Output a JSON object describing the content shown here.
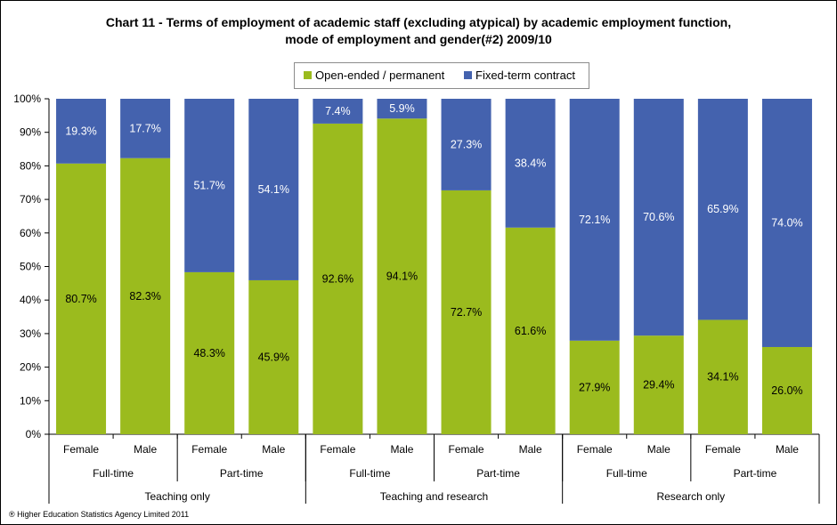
{
  "colors": {
    "open_ended": "#9bbb1e",
    "fixed_term": "#4462ae"
  },
  "chart_data": {
    "type": "bar",
    "stacked": true,
    "percent": true,
    "title": "Chart 11 - Terms of employment of academic staff (excluding atypical) by academic employment function,",
    "subtitle": "mode of employment and gender(#2) 2009/10",
    "ylim": [
      0,
      100
    ],
    "yticks": [
      "0%",
      "10%",
      "20%",
      "30%",
      "40%",
      "50%",
      "60%",
      "70%",
      "80%",
      "90%",
      "100%"
    ],
    "legend_position": "top",
    "grid": false,
    "categories": [
      "Female",
      "Male",
      "Female",
      "Male",
      "Female",
      "Male",
      "Female",
      "Male",
      "Female",
      "Male",
      "Female",
      "Male"
    ],
    "groups_level2": [
      "Full-time",
      "Part-time",
      "Full-time",
      "Part-time",
      "Full-time",
      "Part-time"
    ],
    "groups_level1": [
      "Teaching only",
      "Teaching and research",
      "Research only"
    ],
    "series": [
      {
        "name": "Open-ended / permanent",
        "values": [
          80.7,
          82.3,
          48.3,
          45.9,
          92.6,
          94.1,
          72.7,
          61.6,
          27.9,
          29.4,
          34.1,
          26.0
        ],
        "labels": [
          "80.7%",
          "82.3%",
          "48.3%",
          "45.9%",
          "92.6%",
          "94.1%",
          "72.7%",
          "61.6%",
          "27.9%",
          "29.4%",
          "34.1%",
          "26.0%"
        ]
      },
      {
        "name": "Fixed-term contract",
        "values": [
          19.3,
          17.7,
          51.7,
          54.1,
          7.4,
          5.9,
          27.3,
          38.4,
          72.1,
          70.6,
          65.9,
          74.0
        ],
        "labels": [
          "19.3%",
          "17.7%",
          "51.7%",
          "54.1%",
          "7.4%",
          "5.9%",
          "27.3%",
          "38.4%",
          "72.1%",
          "70.6%",
          "65.9%",
          "74.0%"
        ]
      }
    ]
  },
  "footer": {
    "copyright": "® Higher Education Statistics Agency Limited 2011"
  }
}
